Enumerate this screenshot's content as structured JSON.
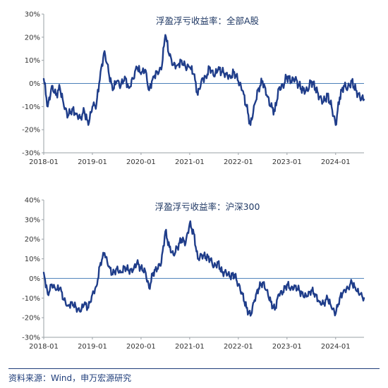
{
  "chart_data": [
    {
      "type": "line",
      "title": "浮盈浮亏收益率：全部A股",
      "x_ticks": [
        "2018-01",
        "2019-01",
        "2020-01",
        "2021-01",
        "2022-01",
        "2023-01",
        "2024-01"
      ],
      "y_ticks": [
        "30%",
        "20%",
        "10%",
        "0%",
        "-10%",
        "-20%",
        "-30%"
      ],
      "ylim": [
        -30,
        30
      ],
      "xlim": [
        "2018-01",
        "2024-08"
      ],
      "series": [
        {
          "color": "#1f3d8a",
          "x": [
            "2018-01",
            "2018-02",
            "2018-03",
            "2018-04",
            "2018-05",
            "2018-06",
            "2018-07",
            "2018-08",
            "2018-09",
            "2018-10",
            "2018-11",
            "2018-12",
            "2019-01",
            "2019-02",
            "2019-03",
            "2019-04",
            "2019-05",
            "2019-06",
            "2019-07",
            "2019-08",
            "2019-09",
            "2019-10",
            "2019-11",
            "2019-12",
            "2020-01",
            "2020-02",
            "2020-03",
            "2020-04",
            "2020-05",
            "2020-06",
            "2020-07",
            "2020-08",
            "2020-09",
            "2020-10",
            "2020-11",
            "2020-12",
            "2021-01",
            "2021-02",
            "2021-03",
            "2021-04",
            "2021-05",
            "2021-06",
            "2021-07",
            "2021-08",
            "2021-09",
            "2021-10",
            "2021-11",
            "2021-12",
            "2022-01",
            "2022-02",
            "2022-03",
            "2022-04",
            "2022-05",
            "2022-06",
            "2022-07",
            "2022-08",
            "2022-09",
            "2022-10",
            "2022-11",
            "2022-12",
            "2023-01",
            "2023-02",
            "2023-03",
            "2023-04",
            "2023-05",
            "2023-06",
            "2023-07",
            "2023-08",
            "2023-09",
            "2023-10",
            "2023-11",
            "2023-12",
            "2024-01",
            "2024-02",
            "2024-03",
            "2024-04",
            "2024-05",
            "2024-06",
            "2024-07",
            "2024-08"
          ],
          "y": [
            2,
            -10,
            -1,
            -5,
            -2,
            -10,
            -14,
            -11,
            -13,
            -15,
            -12,
            -18,
            -10,
            -9,
            5,
            14,
            5,
            -3,
            1,
            -1,
            3,
            -2,
            2,
            7,
            4,
            6,
            -3,
            3,
            5,
            6,
            21,
            12,
            8,
            8,
            10,
            7,
            7,
            4,
            -5,
            2,
            3,
            7,
            3,
            6,
            5,
            4,
            3,
            5,
            1,
            -3,
            -10,
            -18,
            -9,
            -2,
            1,
            -5,
            -10,
            -12,
            -2,
            -1,
            3,
            1,
            2,
            -1,
            -3,
            -3,
            1,
            -2,
            -6,
            -8,
            -5,
            -10,
            -18,
            -6,
            -1,
            -2,
            1,
            -3,
            -6,
            -7
          ]
        }
      ]
    },
    {
      "type": "line",
      "title": "浮盈浮亏收益率：沪深300",
      "x_ticks": [
        "2018-01",
        "2019-01",
        "2020-01",
        "2021-01",
        "2022-01",
        "2023-01",
        "2024-01"
      ],
      "y_ticks": [
        "40%",
        "30%",
        "20%",
        "10%",
        "0%",
        "-10%",
        "-20%",
        "-30%"
      ],
      "ylim": [
        -30,
        40
      ],
      "xlim": [
        "2018-01",
        "2024-08"
      ],
      "series": [
        {
          "color": "#1f3d8a",
          "x": [
            "2018-01",
            "2018-02",
            "2018-03",
            "2018-04",
            "2018-05",
            "2018-06",
            "2018-07",
            "2018-08",
            "2018-09",
            "2018-10",
            "2018-11",
            "2018-12",
            "2019-01",
            "2019-02",
            "2019-03",
            "2019-04",
            "2019-05",
            "2019-06",
            "2019-07",
            "2019-08",
            "2019-09",
            "2019-10",
            "2019-11",
            "2019-12",
            "2020-01",
            "2020-02",
            "2020-03",
            "2020-04",
            "2020-05",
            "2020-06",
            "2020-07",
            "2020-08",
            "2020-09",
            "2020-10",
            "2020-11",
            "2020-12",
            "2021-01",
            "2021-02",
            "2021-03",
            "2021-04",
            "2021-05",
            "2021-06",
            "2021-07",
            "2021-08",
            "2021-09",
            "2021-10",
            "2021-11",
            "2021-12",
            "2022-01",
            "2022-02",
            "2022-03",
            "2022-04",
            "2022-05",
            "2022-06",
            "2022-07",
            "2022-08",
            "2022-09",
            "2022-10",
            "2022-11",
            "2022-12",
            "2023-01",
            "2023-02",
            "2023-03",
            "2023-04",
            "2023-05",
            "2023-06",
            "2023-07",
            "2023-08",
            "2023-09",
            "2023-10",
            "2023-11",
            "2023-12",
            "2024-01",
            "2024-02",
            "2024-03",
            "2024-04",
            "2024-05",
            "2024-06",
            "2024-07",
            "2024-08"
          ],
          "y": [
            3,
            -8,
            -3,
            -6,
            -5,
            -11,
            -14,
            -12,
            -15,
            -17,
            -13,
            -15,
            -8,
            -4,
            8,
            13,
            6,
            2,
            5,
            3,
            6,
            4,
            4,
            8,
            5,
            4,
            -5,
            3,
            5,
            8,
            24,
            16,
            12,
            16,
            20,
            18,
            28,
            23,
            10,
            12,
            11,
            10,
            6,
            8,
            3,
            3,
            1,
            2,
            -3,
            -8,
            -15,
            -19,
            -11,
            -5,
            -2,
            -6,
            -12,
            -16,
            -8,
            -7,
            -3,
            -5,
            -4,
            -6,
            -9,
            -9,
            -6,
            -8,
            -12,
            -13,
            -10,
            -15,
            -18,
            -10,
            -6,
            -5,
            -2,
            -6,
            -8,
            -10
          ]
        }
      ]
    }
  ],
  "source": "资料来源：Wind，申万宏源研究"
}
